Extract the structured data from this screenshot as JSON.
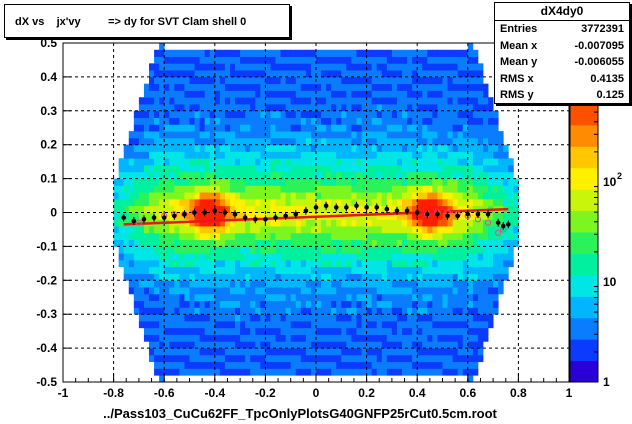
{
  "title": "dX vs    jx'vy         => dy for SVT Clam shell 0",
  "stats": {
    "name": "dX4dy0",
    "rows": [
      {
        "key": "Entries",
        "value": "3772391"
      },
      {
        "key": "Mean x",
        "value": "-0.007095"
      },
      {
        "key": "Mean y",
        "value": "-0.006055"
      },
      {
        "key": "RMS x",
        "value": "0.4135"
      },
      {
        "key": "RMS y",
        "value": "0.125"
      }
    ]
  },
  "xlabel": "../Pass103_CuCu62FF_TpcOnlyPlotsG40GNFP25rCut0.5cm.root",
  "colors": {
    "profile": "#000000",
    "fit": "#e8171b",
    "open_markers": "#e8488c"
  },
  "chart_data": {
    "type": "heatmap",
    "xlim": [
      -1,
      1
    ],
    "ylim": [
      -0.5,
      0.5
    ],
    "x_ticks": [
      "-1",
      "-0.8",
      "-0.6",
      "-0.4",
      "-0.2",
      "0",
      "0.2",
      "0.4",
      "0.6",
      "0.8",
      "1"
    ],
    "y_ticks": [
      "-0.5",
      "-0.4",
      "-0.3",
      "-0.2",
      "-0.1",
      "0",
      "0.1",
      "0.2",
      "0.3",
      "0.4",
      "0.5"
    ],
    "grid": true,
    "colorbar": {
      "scale": "log",
      "min": 1,
      "max": 1000,
      "labels": [
        "1",
        "10",
        "10^2"
      ],
      "label_exponent_partial": "3"
    },
    "profile_points": [
      {
        "x": -0.76,
        "y": -0.015
      },
      {
        "x": -0.72,
        "y": -0.025
      },
      {
        "x": -0.68,
        "y": -0.02
      },
      {
        "x": -0.64,
        "y": -0.015
      },
      {
        "x": -0.6,
        "y": -0.015
      },
      {
        "x": -0.56,
        "y": -0.01
      },
      {
        "x": -0.52,
        "y": -0.005
      },
      {
        "x": -0.48,
        "y": 0.0
      },
      {
        "x": -0.44,
        "y": 0.0
      },
      {
        "x": -0.4,
        "y": 0.005
      },
      {
        "x": -0.36,
        "y": 0.0
      },
      {
        "x": -0.32,
        "y": -0.005
      },
      {
        "x": -0.28,
        "y": -0.015
      },
      {
        "x": -0.24,
        "y": -0.02
      },
      {
        "x": -0.2,
        "y": -0.02
      },
      {
        "x": -0.16,
        "y": -0.015
      },
      {
        "x": -0.12,
        "y": -0.01
      },
      {
        "x": -0.08,
        "y": -0.005
      },
      {
        "x": -0.04,
        "y": 0.005
      },
      {
        "x": 0.0,
        "y": 0.015
      },
      {
        "x": 0.04,
        "y": 0.02
      },
      {
        "x": 0.08,
        "y": 0.015
      },
      {
        "x": 0.12,
        "y": 0.015
      },
      {
        "x": 0.16,
        "y": 0.02
      },
      {
        "x": 0.2,
        "y": 0.015
      },
      {
        "x": 0.24,
        "y": 0.015
      },
      {
        "x": 0.28,
        "y": 0.01
      },
      {
        "x": 0.32,
        "y": 0.005
      },
      {
        "x": 0.36,
        "y": 0.005
      },
      {
        "x": 0.4,
        "y": 0.0
      },
      {
        "x": 0.44,
        "y": -0.005
      },
      {
        "x": 0.48,
        "y": -0.005
      },
      {
        "x": 0.52,
        "y": -0.01
      },
      {
        "x": 0.56,
        "y": -0.01
      },
      {
        "x": 0.6,
        "y": -0.005
      },
      {
        "x": 0.64,
        "y": -0.005
      },
      {
        "x": 0.68,
        "y": -0.005
      },
      {
        "x": 0.72,
        "y": -0.03
      },
      {
        "x": 0.74,
        "y": -0.04
      },
      {
        "x": 0.76,
        "y": -0.035
      }
    ],
    "open_points": [
      {
        "x": -0.7,
        "y": -0.03
      },
      {
        "x": -0.6,
        "y": -0.01
      },
      {
        "x": -0.56,
        "y": -0.005
      },
      {
        "x": -0.52,
        "y": -0.005
      },
      {
        "x": -0.48,
        "y": 0.0
      },
      {
        "x": 0.44,
        "y": -0.005
      },
      {
        "x": 0.48,
        "y": 0.0
      },
      {
        "x": 0.52,
        "y": 0.0
      },
      {
        "x": 0.56,
        "y": -0.005
      },
      {
        "x": 0.6,
        "y": -0.01
      },
      {
        "x": 0.64,
        "y": -0.02
      },
      {
        "x": 0.68,
        "y": -0.03
      },
      {
        "x": 0.72,
        "y": -0.06
      },
      {
        "x": 0.74,
        "y": -0.05
      }
    ],
    "fit_line": [
      {
        "x": -0.76,
        "y": -0.035
      },
      {
        "x": 0.76,
        "y": 0.01
      }
    ]
  }
}
